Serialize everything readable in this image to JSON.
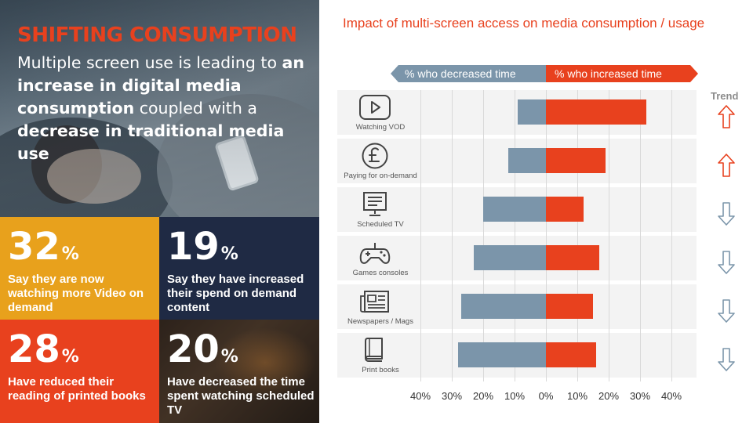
{
  "left_panel": {
    "headline": "SHIFTING CONSUMPTION",
    "sub_parts": [
      {
        "text": "Multiple screen use is leading to ",
        "bold": false
      },
      {
        "text": "an increase in digital media consumption",
        "bold": true
      },
      {
        "text": " coupled with a ",
        "bold": false
      },
      {
        "text": "decrease in traditional media use",
        "bold": true
      }
    ],
    "tiles": [
      {
        "value": "32",
        "unit": "%",
        "text": "Say they are now watching more Video on demand",
        "color": "#e8a11c"
      },
      {
        "value": "19",
        "unit": "%",
        "text": "Say they have increased their spend on demand content",
        "color": "#1f2a44"
      },
      {
        "value": "28",
        "unit": "%",
        "text": "Have reduced their reading of printed books",
        "color": "#e8411e"
      },
      {
        "value": "20",
        "unit": "%",
        "text": "Have decreased the time spent watching scheduled TV",
        "color": "#3a2d25"
      }
    ]
  },
  "chart_title": "Impact of multi-screen access on media consumption / usage",
  "legend": {
    "decreased": "% who decreased time",
    "increased": "% who increased time"
  },
  "trend_title": "Trend",
  "colors": {
    "decreased": "#7b95aa",
    "increased": "#e8411e",
    "trend_up": "#e8411e",
    "trend_down": "#7b95aa"
  },
  "chart_data": {
    "type": "bar",
    "orientation": "horizontal-diverging",
    "title": "Impact of multi-screen access on media consumption / usage",
    "categories": [
      "Watching VOD",
      "Paying for on-demand",
      "Scheduled TV",
      "Games consoles",
      "Newspapers / Mags",
      "Print books"
    ],
    "icons": [
      "play-icon",
      "pound-icon",
      "tv-icon",
      "gamepad-icon",
      "newspaper-icon",
      "book-icon"
    ],
    "series": [
      {
        "name": "% who decreased time",
        "values": [
          9,
          12,
          20,
          23,
          27,
          28
        ]
      },
      {
        "name": "% who increased time",
        "values": [
          32,
          19,
          12,
          17,
          15,
          16
        ]
      }
    ],
    "trend": [
      "up",
      "up",
      "down",
      "down",
      "down",
      "down"
    ],
    "xlim": [
      -40,
      40
    ],
    "xticks": [
      -40,
      -30,
      -20,
      -10,
      0,
      10,
      20,
      30,
      40
    ],
    "xtick_labels": [
      "40%",
      "30%",
      "20%",
      "10%",
      "0%",
      "10%",
      "20%",
      "30%",
      "40%"
    ],
    "grid": true,
    "legend": "top"
  }
}
